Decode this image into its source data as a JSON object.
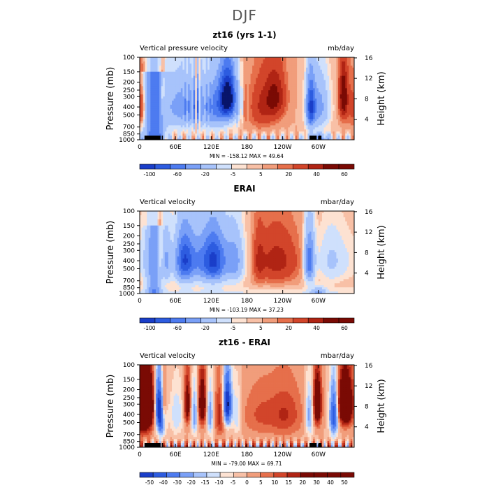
{
  "figure": {
    "title": "DJF"
  },
  "colors": {
    "full": [
      "#08156b",
      "#1a3ec9",
      "#2d5ce0",
      "#4d7bf0",
      "#7aa0f7",
      "#a7c3fb",
      "#cfe0fc",
      "#fde2d2",
      "#f8c0a6",
      "#f19d7b",
      "#e66f4b",
      "#d2452a",
      "#b02414",
      "#7a0a04"
    ],
    "diff": [
      "#08156b",
      "#1a3ec9",
      "#2d5ce0",
      "#4d7bf0",
      "#7aa0f7",
      "#a7c3fb",
      "#cfe0fc",
      "#fde2d2",
      "#f8c0a6",
      "#f19d7b",
      "#e66f4b",
      "#d2452a",
      "#b02414",
      "#7a0a04"
    ]
  },
  "chart_data": [
    {
      "type": "heatmap",
      "title": "zt16 (yrs 1-1)",
      "left_label": "Vertical pressure velocity",
      "right_label": "mb/day",
      "ylabel": "Pressure (mb)",
      "y2label": "Height (km)",
      "x_ticks": [
        "0",
        "60E",
        "120E",
        "180",
        "120W",
        "60W"
      ],
      "y_ticks": [
        "100",
        "150",
        "200",
        "250",
        "300",
        "400",
        "500",
        "700",
        "850",
        "1000"
      ],
      "y2_ticks": [
        "16",
        "12",
        "8",
        "4"
      ],
      "stats": "MIN = -158.12   MAX =  49.64",
      "colorbar": {
        "labels": [
          "-100",
          "-60",
          "-20",
          "-5",
          "5",
          "20",
          "40",
          "60"
        ],
        "levels": [
          "-120",
          "-100",
          "-80",
          "-60",
          "-40",
          "-20",
          "-10",
          "-5",
          "0",
          "5",
          "10",
          "20",
          "30",
          "40",
          "60"
        ]
      },
      "profile_name": "model",
      "sample_values": [
        {
          "lon": 5,
          "value": 20
        },
        {
          "lon": 25,
          "value": -40
        },
        {
          "lon": 40,
          "value": 15
        },
        {
          "lon": 75,
          "value": -60
        },
        {
          "lon": 110,
          "value": -45
        },
        {
          "lon": 150,
          "value": -110
        },
        {
          "lon": 175,
          "value": -10
        },
        {
          "lon": 210,
          "value": 15
        },
        {
          "lon": 245,
          "value": 20
        },
        {
          "lon": 290,
          "value": -70
        },
        {
          "lon": 330,
          "value": -20
        },
        {
          "lon": 355,
          "value": 25
        }
      ]
    },
    {
      "type": "heatmap",
      "title": "ERAI",
      "left_label": "Vertical velocity",
      "right_label": "mbar/day",
      "ylabel": "Pressure (mb)",
      "y2label": "Height (km)",
      "x_ticks": [
        "0",
        "60E",
        "120E",
        "180",
        "120W",
        "60W"
      ],
      "y_ticks": [
        "100",
        "150",
        "200",
        "250",
        "300",
        "400",
        "500",
        "700",
        "850",
        "1000"
      ],
      "y2_ticks": [
        "16",
        "12",
        "8",
        "4"
      ],
      "stats": "MIN = -103.19   MAX =  37.23",
      "colorbar": {
        "labels": [
          "-100",
          "-60",
          "-20",
          "-5",
          "5",
          "20",
          "40",
          "60"
        ],
        "levels": [
          "-120",
          "-100",
          "-80",
          "-60",
          "-40",
          "-20",
          "-10",
          "-5",
          "0",
          "5",
          "10",
          "20",
          "30",
          "40",
          "60"
        ]
      },
      "profile_name": "erai",
      "sample_values": [
        {
          "lon": 5,
          "value": -5
        },
        {
          "lon": 25,
          "value": -30
        },
        {
          "lon": 40,
          "value": 10
        },
        {
          "lon": 80,
          "value": -35
        },
        {
          "lon": 120,
          "value": -45
        },
        {
          "lon": 150,
          "value": -40
        },
        {
          "lon": 190,
          "value": 5
        },
        {
          "lon": 230,
          "value": 15
        },
        {
          "lon": 255,
          "value": 20
        },
        {
          "lon": 290,
          "value": -40
        },
        {
          "lon": 330,
          "value": -5
        },
        {
          "lon": 355,
          "value": -3
        }
      ]
    },
    {
      "type": "heatmap",
      "title": "zt16 - ERAI",
      "left_label": "Vertical velocity",
      "right_label": "mbar/day",
      "ylabel": "Pressure (mb)",
      "y2label": "Height (km)",
      "x_ticks": [
        "0",
        "60E",
        "120E",
        "180",
        "120W",
        "60W"
      ],
      "y_ticks": [
        "100",
        "150",
        "200",
        "250",
        "300",
        "400",
        "500",
        "700",
        "850",
        "1000"
      ],
      "y2_ticks": [
        "16",
        "12",
        "8",
        "4"
      ],
      "stats": "MIN = -79.00   MAX =  69.71",
      "colorbar": {
        "labels": [
          "-50",
          "-40",
          "-30",
          "-20",
          "-15",
          "-10",
          "-5",
          "0",
          "5",
          "10",
          "15",
          "20",
          "30",
          "40",
          "50"
        ],
        "levels": [
          "-60",
          "-50",
          "-40",
          "-30",
          "-20",
          "-15",
          "-10",
          "-5",
          "0",
          "5",
          "10",
          "15",
          "20",
          "30",
          "40",
          "50",
          "60"
        ]
      },
      "profile_name": "diff",
      "sample_values": [
        {
          "lon": 10,
          "value": 40
        },
        {
          "lon": 35,
          "value": -45
        },
        {
          "lon": 60,
          "value": -15
        },
        {
          "lon": 95,
          "value": 30
        },
        {
          "lon": 125,
          "value": -20
        },
        {
          "lon": 145,
          "value": -55
        },
        {
          "lon": 185,
          "value": 5
        },
        {
          "lon": 250,
          "value": 8
        },
        {
          "lon": 285,
          "value": -10
        },
        {
          "lon": 300,
          "value": 35
        },
        {
          "lon": 330,
          "value": -40
        },
        {
          "lon": 350,
          "value": 40
        }
      ]
    }
  ]
}
